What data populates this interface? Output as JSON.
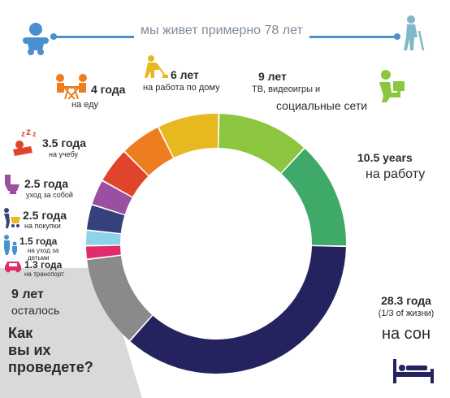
{
  "lifeline": {
    "text": "мы живет примерно 78 лет"
  },
  "labels": [
    {
      "num": "4 года",
      "txt": "на еду"
    },
    {
      "num": "6 лет",
      "txt": "на работа по дому"
    },
    {
      "num": "9 лет",
      "txt": "ТВ, видеоигры и",
      "txt2": "социальные сети"
    },
    {
      "num": "3.5 года",
      "txt": "на учебу"
    },
    {
      "num": "2.5 года",
      "txt": "уход за собой"
    },
    {
      "num": "2.5 года",
      "txt": "на покупки"
    },
    {
      "num": "1.5 года",
      "txt": "на уход за",
      "txt2": "детьми"
    },
    {
      "num": "1.3 года",
      "txt": "на транспорт"
    },
    {
      "num": "10.5 years",
      "txt": "на работу"
    },
    {
      "num": "28.3 года",
      "txt": "(1/3 of жизни)",
      "txt2": "на сон"
    }
  ],
  "remaining": {
    "line1": "9 лет",
    "line2": "осталось",
    "question1": "Как",
    "question2": "вы их",
    "question3": "проведете?"
  },
  "colors": {
    "sleep": "#25235f",
    "work": "#3fa96a",
    "tv": "#8cc63f",
    "chores": "#e8b820",
    "food": "#ee7d1f",
    "study": "#e0452c",
    "selfcare": "#9b4fa0",
    "shopping": "#34417a",
    "children": "#8dd3ea",
    "transport": "#e02c6b",
    "remaining": "#8a8a8a"
  },
  "icons": [
    "baby-icon",
    "elderly-man-icon",
    "eating-couple-icon",
    "cleaning-person-icon",
    "person-at-computer-icon",
    "sleeping-zzz-icon",
    "toilet-icon",
    "shopping-cart-icon",
    "parent-child-icon",
    "car-icon",
    "bed-icon"
  ],
  "chart_data": {
    "type": "pie",
    "donut": true,
    "unit": "years",
    "categories": [
      "на сон",
      "осталось",
      "на транспорт",
      "на уход за детьми",
      "на покупки",
      "уход за собой",
      "на учебу",
      "на еду",
      "на работа по дому",
      "ТВ, видеоигры и социальные сети",
      "на работу"
    ],
    "values": [
      28.3,
      9,
      1.3,
      1.5,
      2.5,
      2.5,
      3.5,
      4,
      6,
      9,
      10.5
    ],
    "total_label": "мы живет примерно 78 лет"
  }
}
